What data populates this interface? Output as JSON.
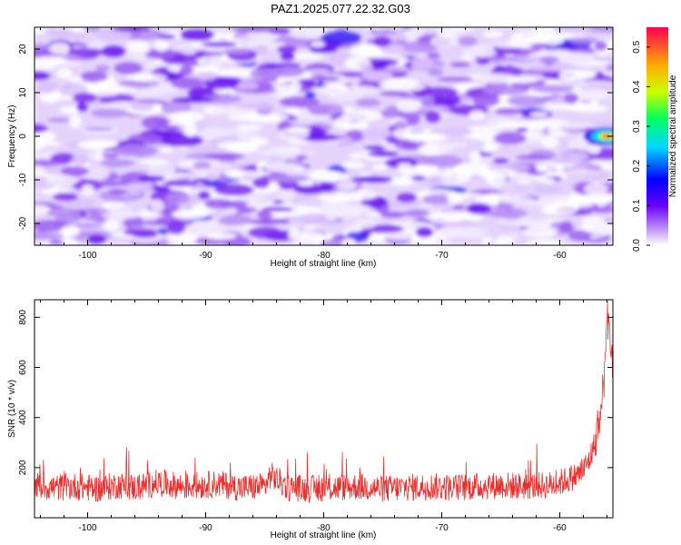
{
  "title": "PAZ1.2025.077.22.32.G03",
  "chart_data": [
    {
      "type": "heatmap",
      "xlabel": "Height of straight line (km)",
      "ylabel": "Frequency (Hz)",
      "xlim": [
        -104.5,
        -55.5
      ],
      "ylim": [
        -25,
        25
      ],
      "xticks": [
        -100,
        -90,
        -80,
        -70,
        -60
      ],
      "yticks": [
        -20,
        -10,
        0,
        10,
        20
      ],
      "colorbar": {
        "label": "Normalized spectral amplitude",
        "range": [
          0.0,
          0.55
        ],
        "ticks": [
          "0.0",
          "0.1",
          "0.2",
          "0.3",
          "0.4",
          "0.5"
        ]
      },
      "peak": {
        "x": -56,
        "y": 0,
        "value": 0.55
      },
      "background_level": [
        0.0,
        0.12
      ],
      "grid": false
    },
    {
      "type": "line",
      "xlabel": "Height of straight line (km)",
      "ylabel": "SNR (10 * v/v)",
      "xlim": [
        -104.5,
        -55.5
      ],
      "ylim": [
        0,
        870
      ],
      "xticks": [
        -100,
        -90,
        -80,
        -70,
        -60
      ],
      "yticks": [
        200,
        400,
        600,
        800
      ],
      "color": "#e8312f",
      "series": [
        {
          "x": [
            -104.5,
            -103,
            -101,
            -99,
            -97.5,
            -96,
            -94,
            -92,
            -90.5,
            -89,
            -87,
            -85,
            -84.5,
            -83,
            -81,
            -79,
            -77,
            -75,
            -73,
            -71,
            -69,
            -67,
            -65,
            -63,
            -61,
            -60,
            -59,
            -58.5,
            -58,
            -57.5,
            -57,
            -56.5,
            -56.2,
            -56,
            -55.8,
            -55.5
          ],
          "y": [
            130,
            120,
            125,
            115,
            130,
            120,
            140,
            125,
            130,
            135,
            120,
            125,
            170,
            120,
            115,
            120,
            125,
            115,
            120,
            125,
            120,
            125,
            130,
            125,
            130,
            140,
            160,
            170,
            190,
            230,
            300,
            420,
            600,
            820,
            760,
            550
          ]
        }
      ],
      "grid": false
    }
  ]
}
